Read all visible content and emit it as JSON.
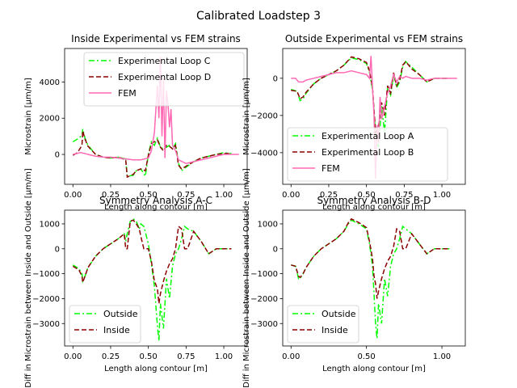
{
  "figure": {
    "suptitle": "Calibrated Loadstep 3"
  },
  "colors": {
    "experimental_primary": "#00ff00",
    "experimental_secondary": "#8b0000",
    "fem": "#ff69b4",
    "outside": "#00ff00",
    "inside": "#8b0000"
  },
  "chart_data": [
    {
      "type": "line",
      "title": "Inside Experimental vs FEM strains",
      "xlabel": "Length along contour [m]",
      "ylabel": "Microstrain [µm/m]",
      "xlim": [
        -0.055,
        1.155
      ],
      "ylim": [
        -1650,
        5850
      ],
      "xticks": [
        0.0,
        0.25,
        0.5,
        0.75,
        1.0
      ],
      "xtick_labels": [
        "0.00",
        "0.25",
        "0.50",
        "0.75",
        "1.00"
      ],
      "yticks": [
        0,
        2000,
        4000
      ],
      "ytick_labels": [
        "0",
        "2000",
        "4000"
      ],
      "legend_position": "upper-right",
      "series": [
        {
          "name": "Experimental Loop C",
          "style": "dashdot",
          "color": "#00ff00",
          "x": [
            0.0,
            0.03,
            0.06,
            0.065,
            0.08,
            0.1,
            0.15,
            0.2,
            0.25,
            0.3,
            0.35,
            0.36,
            0.4,
            0.42,
            0.45,
            0.48,
            0.5,
            0.52,
            0.54,
            0.56,
            0.58,
            0.6,
            0.62,
            0.64,
            0.66,
            0.68,
            0.7,
            0.72,
            0.75,
            0.8,
            0.85,
            0.9,
            0.95,
            1.0,
            1.05
          ],
          "y": [
            700,
            850,
            1050,
            1400,
            900,
            500,
            0,
            -150,
            -200,
            -150,
            -250,
            -1200,
            -1150,
            -900,
            -800,
            -1200,
            0,
            700,
            500,
            900,
            400,
            300,
            400,
            500,
            300,
            600,
            -500,
            -900,
            -700,
            -400,
            -200,
            -100,
            0,
            100,
            50
          ]
        },
        {
          "name": "Experimental Loop D",
          "style": "dashed",
          "color": "#8b0000",
          "x": [
            0.0,
            0.03,
            0.06,
            0.065,
            0.08,
            0.1,
            0.15,
            0.2,
            0.25,
            0.3,
            0.35,
            0.36,
            0.4,
            0.42,
            0.45,
            0.48,
            0.5,
            0.52,
            0.54,
            0.56,
            0.58,
            0.6,
            0.62,
            0.64,
            0.66,
            0.68,
            0.7,
            0.72,
            0.75,
            0.8,
            0.85,
            0.9,
            0.95,
            1.0,
            1.05
          ],
          "y": [
            -50,
            100,
            500,
            1300,
            850,
            450,
            0,
            -150,
            -200,
            -150,
            -300,
            -1250,
            -1100,
            -900,
            -800,
            -900,
            -50,
            600,
            700,
            800,
            400,
            200,
            500,
            450,
            300,
            500,
            -600,
            -800,
            -650,
            -400,
            -200,
            -100,
            0,
            50,
            50
          ]
        },
        {
          "name": "FEM",
          "style": "solid",
          "color": "#ff69b4",
          "x": [
            0.0,
            0.05,
            0.08,
            0.1,
            0.15,
            0.2,
            0.25,
            0.3,
            0.35,
            0.4,
            0.45,
            0.5,
            0.52,
            0.54,
            0.55,
            0.56,
            0.57,
            0.58,
            0.59,
            0.6,
            0.61,
            0.62,
            0.63,
            0.64,
            0.65,
            0.66,
            0.68,
            0.7,
            0.75,
            0.8,
            0.85,
            0.9,
            0.95,
            1.0,
            1.05,
            1.1
          ],
          "y": [
            0,
            100,
            50,
            0,
            -100,
            -150,
            -150,
            -200,
            -250,
            -300,
            -300,
            -200,
            200,
            1200,
            2500,
            3800,
            2000,
            5400,
            1000,
            4200,
            -200,
            3500,
            2800,
            1500,
            2500,
            500,
            200,
            -300,
            -500,
            -400,
            -300,
            -200,
            -100,
            0,
            0,
            0
          ]
        }
      ]
    },
    {
      "type": "line",
      "title": "Outside Experimental vs FEM strains",
      "xlabel": "Length along contour [m]",
      "ylabel": "Microstrain [µm/m]",
      "xlim": [
        -0.055,
        1.155
      ],
      "ylim": [
        -5700,
        1600
      ],
      "xticks": [
        0.0,
        0.25,
        0.5,
        0.75,
        1.0
      ],
      "xtick_labels": [
        "0.00",
        "0.25",
        "0.50",
        "0.75",
        "1.00"
      ],
      "yticks": [
        -4000,
        -2000,
        0
      ],
      "ytick_labels": [
        "−4000",
        "−2000",
        "0"
      ],
      "legend_position": "lower-left",
      "series": [
        {
          "name": "Experimental Loop A",
          "style": "dashdot",
          "color": "#00ff00",
          "x": [
            0.0,
            0.04,
            0.06,
            0.08,
            0.1,
            0.15,
            0.2,
            0.25,
            0.3,
            0.35,
            0.4,
            0.45,
            0.5,
            0.52,
            0.54,
            0.56,
            0.58,
            0.6,
            0.62,
            0.64,
            0.66,
            0.68,
            0.7,
            0.72,
            0.74,
            0.76,
            0.8,
            0.85,
            0.9,
            0.95,
            1.0,
            1.05
          ],
          "y": [
            -600,
            -700,
            -1200,
            -1100,
            -800,
            -300,
            0,
            200,
            400,
            700,
            1100,
            1000,
            800,
            300,
            -600,
            -3000,
            -3700,
            -1500,
            -2900,
            -500,
            -900,
            200,
            -500,
            -200,
            600,
            900,
            600,
            200,
            -200,
            0,
            0,
            0
          ]
        },
        {
          "name": "Experimental Loop B",
          "style": "dashed",
          "color": "#8b0000",
          "x": [
            0.0,
            0.04,
            0.06,
            0.08,
            0.1,
            0.15,
            0.2,
            0.25,
            0.3,
            0.35,
            0.4,
            0.45,
            0.5,
            0.52,
            0.54,
            0.56,
            0.58,
            0.6,
            0.62,
            0.64,
            0.66,
            0.68,
            0.7,
            0.72,
            0.74,
            0.76,
            0.8,
            0.85,
            0.9,
            0.95,
            1.0,
            1.05
          ],
          "y": [
            -650,
            -700,
            -1100,
            -1000,
            -750,
            -300,
            0,
            200,
            400,
            700,
            1150,
            1050,
            850,
            400,
            -500,
            -2900,
            -2600,
            -1300,
            -2000,
            -400,
            -800,
            300,
            -400,
            -100,
            700,
            900,
            500,
            200,
            -200,
            0,
            0,
            0
          ]
        },
        {
          "name": "FEM",
          "style": "solid",
          "color": "#ff69b4",
          "x": [
            0.0,
            0.03,
            0.05,
            0.08,
            0.1,
            0.15,
            0.2,
            0.25,
            0.3,
            0.35,
            0.4,
            0.45,
            0.5,
            0.52,
            0.53,
            0.54,
            0.55,
            0.56,
            0.57,
            0.58,
            0.59,
            0.6,
            0.62,
            0.64,
            0.66,
            0.68,
            0.7,
            0.72,
            0.74,
            0.76,
            0.8,
            0.85,
            0.9,
            0.95,
            1.0,
            1.05,
            1.1
          ],
          "y": [
            0,
            0,
            -200,
            -200,
            -100,
            0,
            100,
            200,
            300,
            300,
            400,
            300,
            200,
            0,
            1200,
            -500,
            -2000,
            -5400,
            -2500,
            -3500,
            -1000,
            -2200,
            -1500,
            -800,
            -400,
            200,
            -200,
            100,
            0,
            100,
            0,
            0,
            -100,
            0,
            0,
            0,
            0
          ]
        }
      ]
    },
    {
      "type": "line",
      "title": "Symmetry Analysis A-C",
      "xlabel": "Length along contour [m]",
      "ylabel": "Diff in Microstrain between Inside and Outside [µm/m]",
      "xlim": [
        -0.055,
        1.155
      ],
      "ylim": [
        -3900,
        1550
      ],
      "xticks": [
        0.0,
        0.25,
        0.5,
        0.75,
        1.0
      ],
      "xtick_labels": [
        "0.00",
        "0.25",
        "0.50",
        "0.75",
        "1.00"
      ],
      "yticks": [
        -3000,
        -2000,
        -1000,
        0,
        1000
      ],
      "ytick_labels": [
        "−3000",
        "−2000",
        "−1000",
        "0",
        "1000"
      ],
      "legend_position": "lower-left",
      "series": [
        {
          "name": "Outside",
          "style": "dashdot",
          "color": "#00ff00",
          "x": [
            0.0,
            0.04,
            0.06,
            0.065,
            0.08,
            0.1,
            0.15,
            0.2,
            0.25,
            0.3,
            0.34,
            0.35,
            0.36,
            0.38,
            0.4,
            0.42,
            0.44,
            0.45,
            0.47,
            0.5,
            0.52,
            0.54,
            0.56,
            0.57,
            0.58,
            0.6,
            0.62,
            0.64,
            0.66,
            0.68,
            0.7,
            0.72,
            0.74,
            0.76,
            0.8,
            0.85,
            0.9,
            0.95,
            1.0,
            1.05
          ],
          "y": [
            -650,
            -800,
            -1000,
            -1300,
            -1100,
            -750,
            -300,
            0,
            200,
            400,
            600,
            300,
            600,
            1100,
            1200,
            1100,
            800,
            1000,
            900,
            200,
            -600,
            -1500,
            -3100,
            -3700,
            -2200,
            -3200,
            -1200,
            -2000,
            -700,
            -200,
            0,
            400,
            900,
            800,
            700,
            300,
            -200,
            0,
            0,
            0
          ]
        },
        {
          "name": "Inside",
          "style": "dashed",
          "color": "#8b0000",
          "x": [
            0.0,
            0.04,
            0.06,
            0.065,
            0.08,
            0.1,
            0.15,
            0.2,
            0.25,
            0.3,
            0.34,
            0.35,
            0.36,
            0.38,
            0.4,
            0.42,
            0.44,
            0.45,
            0.47,
            0.5,
            0.52,
            0.54,
            0.56,
            0.57,
            0.58,
            0.6,
            0.62,
            0.64,
            0.66,
            0.68,
            0.7,
            0.72,
            0.74,
            0.76,
            0.8,
            0.85,
            0.9,
            0.95,
            1.0,
            1.05
          ],
          "y": [
            -700,
            -850,
            -1100,
            -1350,
            -1100,
            -750,
            -300,
            0,
            200,
            400,
            600,
            0,
            0,
            1100,
            1150,
            1000,
            800,
            500,
            0,
            0,
            -500,
            -1300,
            -1600,
            -2200,
            -1800,
            -1300,
            -900,
            -600,
            -400,
            0,
            900,
            800,
            0,
            0,
            700,
            300,
            -200,
            0,
            0,
            0
          ]
        }
      ]
    },
    {
      "type": "line",
      "title": "Symmetry Analysis B-D",
      "xlabel": "Length along contour [m]",
      "ylabel": "Diff in Microstrain between Inside and Outside [µm/m]",
      "xlim": [
        -0.055,
        1.155
      ],
      "ylim": [
        -3900,
        1550
      ],
      "xticks": [
        0.0,
        0.5,
        1.0
      ],
      "xtick_labels": [
        "0.00",
        "0.50",
        "1.00"
      ],
      "yticks": [
        -3000,
        -2000,
        -1000,
        0,
        1000
      ],
      "ytick_labels": [
        "−3000",
        "−2000",
        "−1000",
        "0",
        "1000"
      ],
      "legend_position": "lower-left",
      "series": [
        {
          "name": "Outside",
          "style": "dashdot",
          "color": "#00ff00",
          "x": [
            0.0,
            0.03,
            0.05,
            0.06,
            0.08,
            0.1,
            0.15,
            0.2,
            0.25,
            0.3,
            0.35,
            0.38,
            0.4,
            0.45,
            0.5,
            0.52,
            0.54,
            0.55,
            0.56,
            0.57,
            0.58,
            0.6,
            0.62,
            0.64,
            0.66,
            0.68,
            0.7,
            0.72,
            0.74,
            0.76,
            0.8,
            0.85,
            0.9,
            0.95,
            1.0,
            1.05
          ],
          "y": [
            -650,
            -700,
            -1200,
            -1200,
            -1000,
            -750,
            -300,
            0,
            200,
            400,
            700,
            1000,
            1150,
            1000,
            800,
            200,
            -700,
            -1800,
            -3000,
            -3600,
            -2200,
            -3000,
            -1200,
            -1900,
            -700,
            -200,
            0,
            400,
            900,
            800,
            600,
            200,
            -200,
            0,
            0,
            0
          ]
        },
        {
          "name": "Inside",
          "style": "dashed",
          "color": "#8b0000",
          "x": [
            0.0,
            0.03,
            0.05,
            0.06,
            0.08,
            0.1,
            0.15,
            0.2,
            0.25,
            0.3,
            0.35,
            0.38,
            0.4,
            0.45,
            0.5,
            0.52,
            0.54,
            0.55,
            0.56,
            0.57,
            0.58,
            0.6,
            0.62,
            0.64,
            0.66,
            0.68,
            0.7,
            0.72,
            0.74,
            0.76,
            0.8,
            0.85,
            0.9,
            0.95,
            1.0,
            1.05
          ],
          "y": [
            -650,
            -700,
            -1100,
            -1150,
            -1000,
            -750,
            -300,
            0,
            200,
            400,
            700,
            1050,
            1200,
            1050,
            850,
            300,
            -400,
            -1100,
            -1400,
            -2000,
            -1700,
            -1200,
            -800,
            -500,
            -300,
            100,
            800,
            700,
            0,
            0,
            600,
            200,
            -200,
            0,
            0,
            0
          ]
        }
      ]
    }
  ]
}
